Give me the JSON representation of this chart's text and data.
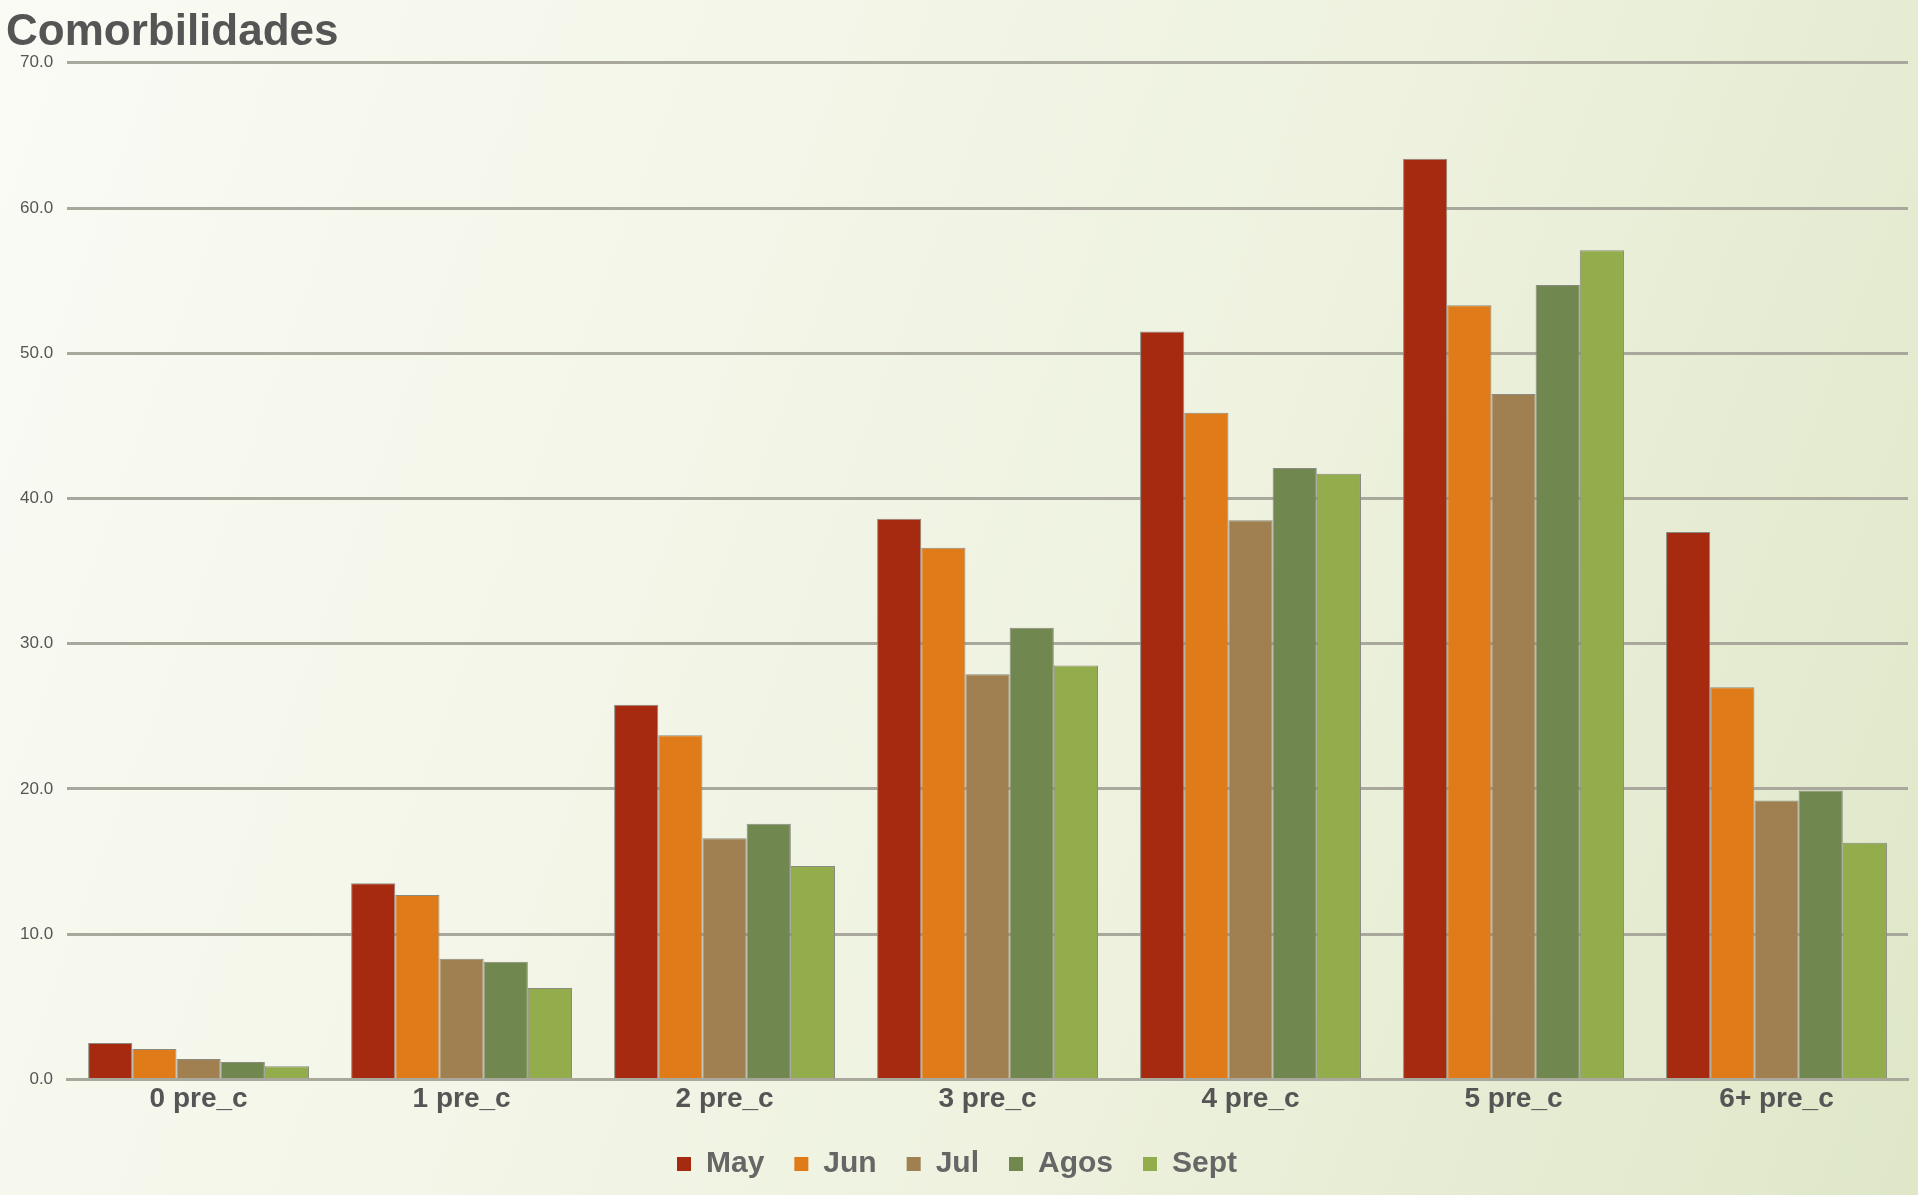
{
  "chart_data": {
    "type": "bar",
    "title": "Comorbilidades",
    "categories": [
      "0 pre_c",
      "1 pre_c",
      "2 pre_c",
      "3 pre_c",
      "4 pre_c",
      "5 pre_c",
      "6+ pre_c"
    ],
    "series": [
      {
        "name": "May",
        "color": "#a52a10",
        "values": [
          2.5,
          13.5,
          25.8,
          38.6,
          51.5,
          63.4,
          37.7
        ]
      },
      {
        "name": "Jun",
        "color": "#e07b1a",
        "values": [
          2.1,
          12.7,
          23.7,
          36.6,
          45.9,
          53.3,
          27.0
        ]
      },
      {
        "name": "Jul",
        "color": "#a08050",
        "values": [
          1.4,
          8.3,
          16.6,
          27.9,
          38.5,
          47.2,
          19.2
        ]
      },
      {
        "name": "Agos",
        "color": "#708850",
        "values": [
          1.2,
          8.1,
          17.6,
          31.1,
          42.1,
          54.7,
          19.9
        ]
      },
      {
        "name": "Sept",
        "color": "#94ad4c",
        "values": [
          0.9,
          6.3,
          14.7,
          28.5,
          41.7,
          57.1,
          16.3
        ]
      }
    ],
    "ylim": [
      0,
      70
    ],
    "yticks": [
      {
        "value": 0,
        "label": "0.0"
      },
      {
        "value": 10,
        "label": "10.0"
      },
      {
        "value": 20,
        "label": "20.0"
      },
      {
        "value": 30,
        "label": "30.0"
      },
      {
        "value": 40,
        "label": "40.0"
      },
      {
        "value": 50,
        "label": "50.0"
      },
      {
        "value": 60,
        "label": "60.0"
      },
      {
        "value": 70,
        "label": "70.0"
      }
    ],
    "grid": "y",
    "legend": "bottom"
  }
}
